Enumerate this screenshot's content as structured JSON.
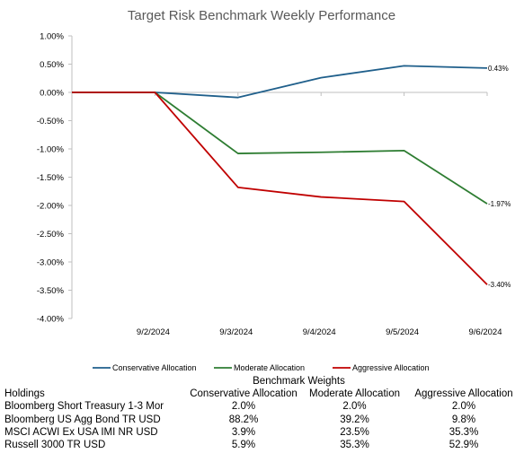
{
  "chart_data": {
    "type": "line",
    "title": "Target Risk Benchmark Weekly Performance",
    "categories": [
      "",
      "9/2/2024",
      "9/3/2024",
      "9/4/2024",
      "9/5/2024",
      "9/6/2024"
    ],
    "ylim": [
      -4.0,
      1.0
    ],
    "yticks": [
      "1.00%",
      "0.50%",
      "0.00%",
      "-0.50%",
      "-1.00%",
      "-1.50%",
      "-2.00%",
      "-2.50%",
      "-3.00%",
      "-3.50%",
      "-4.00%"
    ],
    "grid": false,
    "legend_position": "bottom",
    "series": [
      {
        "name": "Conservative Allocation",
        "color": "#1f5f8b",
        "values": [
          0,
          0,
          -0.09,
          0.26,
          0.47,
          0.43
        ],
        "end_label": "0.43%"
      },
      {
        "name": "Moderate Allocation",
        "color": "#2e7d32",
        "values": [
          0,
          0,
          -1.08,
          -1.06,
          -1.03,
          -1.97
        ],
        "end_label": "-1.97%"
      },
      {
        "name": "Aggressive Allocation",
        "color": "#c00000",
        "values": [
          0,
          0,
          -1.68,
          -1.85,
          -1.93,
          -3.4
        ],
        "end_label": "-3.40%"
      }
    ]
  },
  "table": {
    "caption": "Benchmark Weights",
    "headers": [
      "Holdings",
      "Conservative Allocation",
      "Moderate Allocation",
      "Aggressive Allocation"
    ],
    "rows": [
      [
        "Bloomberg Short Treasury 1-3 Mor",
        "2.0%",
        "2.0%",
        "2.0%"
      ],
      [
        "Bloomberg US Agg Bond TR USD",
        "88.2%",
        "39.2%",
        "9.8%"
      ],
      [
        "MSCI ACWI Ex USA IMI NR USD",
        "3.9%",
        "23.5%",
        "35.3%"
      ],
      [
        "Russell 3000 TR USD",
        "5.9%",
        "35.3%",
        "52.9%"
      ]
    ]
  }
}
